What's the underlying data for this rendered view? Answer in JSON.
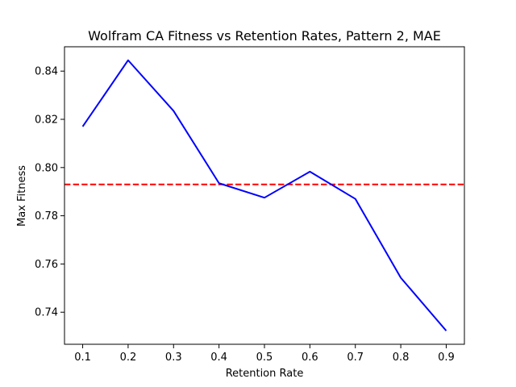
{
  "chart_data": {
    "type": "line",
    "title": "Wolfram CA Fitness vs Retention Rates, Pattern 2, MAE",
    "xlabel": "Retention Rate",
    "ylabel": "Max Fitness",
    "x": [
      0.1,
      0.2,
      0.3,
      0.4,
      0.5,
      0.6,
      0.7,
      0.8,
      0.9
    ],
    "series": [
      {
        "values": [
          0.817,
          0.8445,
          0.8235,
          0.7935,
          0.7875,
          0.7983,
          0.787,
          0.7543,
          0.7323
        ],
        "color": "#0000ff"
      }
    ],
    "reference_line": {
      "y": 0.793,
      "color": "#ff0000",
      "style": "dashed"
    },
    "xticks": [
      "0.1",
      "0.2",
      "0.3",
      "0.4",
      "0.5",
      "0.6",
      "0.7",
      "0.8",
      "0.9"
    ],
    "yticks": [
      "0.74",
      "0.76",
      "0.78",
      "0.80",
      "0.82",
      "0.84"
    ],
    "xlim": [
      0.06,
      0.94
    ],
    "ylim": [
      0.7267,
      0.8501
    ],
    "grid": false
  }
}
